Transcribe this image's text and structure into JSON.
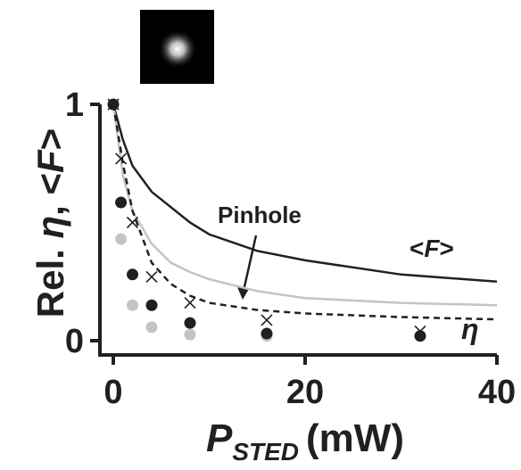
{
  "chart_data": {
    "type": "scatter-line",
    "xlim": [
      0,
      40
    ],
    "xticks": [
      0,
      20,
      40
    ],
    "ylim": [
      0,
      1
    ],
    "yticks": [
      0,
      1
    ],
    "xlabel": {
      "main": "P",
      "sub": "STED",
      "unit": "(mW)"
    },
    "ylabel": [
      "Rel. ",
      "η",
      ", <",
      "F",
      ">"
    ],
    "annotations": {
      "pinhole": "Pinhole",
      "F": [
        "<",
        "F",
        ">"
      ],
      "eta": "η"
    },
    "series": [
      {
        "kind": "line",
        "style": "solid",
        "color": "#231f20",
        "x": [
          0,
          1,
          2,
          4,
          8,
          10,
          15,
          20,
          30,
          40
        ],
        "values": [
          1,
          0.85,
          0.74,
          0.63,
          0.5,
          0.45,
          0.38,
          0.34,
          0.28,
          0.25
        ]
      },
      {
        "kind": "line",
        "style": "solid",
        "color": "#c4c4c4",
        "x": [
          0,
          1,
          2,
          4,
          6,
          8,
          10,
          15,
          20,
          30,
          40
        ],
        "values": [
          1,
          0.7,
          0.55,
          0.41,
          0.33,
          0.29,
          0.26,
          0.21,
          0.18,
          0.16,
          0.15
        ]
      },
      {
        "kind": "line",
        "style": "dashed",
        "color": "#231f20",
        "x": [
          0,
          1,
          2,
          4,
          6,
          8,
          10,
          15,
          20,
          30,
          40
        ],
        "values": [
          1,
          0.75,
          0.55,
          0.33,
          0.24,
          0.19,
          0.16,
          0.13,
          0.115,
          0.1,
          0.09
        ]
      },
      {
        "kind": "points",
        "marker": "dot",
        "color": "#c4c4c4",
        "x": [
          0.8,
          2,
          4,
          8,
          16
        ],
        "values": [
          0.43,
          0.15,
          0.057,
          0.026,
          0.02
        ]
      },
      {
        "kind": "points",
        "marker": "dot",
        "color": "#231f20",
        "x": [
          0,
          0.8,
          2,
          4,
          8,
          16,
          32
        ],
        "values": [
          1,
          0.585,
          0.28,
          0.15,
          0.075,
          0.03,
          0.02
        ]
      },
      {
        "kind": "points",
        "marker": "cross",
        "color": "#231f20",
        "x": [
          0,
          0.8,
          2,
          4,
          8,
          16,
          32
        ],
        "values": [
          1,
          0.77,
          0.5,
          0.27,
          0.16,
          0.087,
          0.04
        ]
      }
    ]
  }
}
